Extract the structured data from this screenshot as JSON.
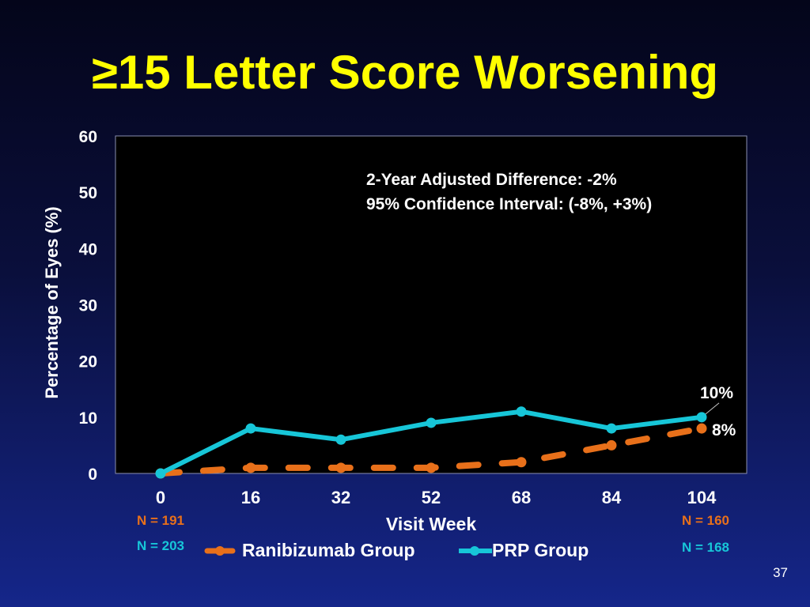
{
  "slide": {
    "title": "≥15 Letter Score Worsening",
    "page_number": "37"
  },
  "n_labels": {
    "ranibizumab_start": "N = 191",
    "prp_start": "N = 203",
    "ranibizumab_end": "N = 160",
    "prp_end": "N = 168"
  },
  "colors": {
    "title": "#ffff00",
    "ranibizumab": "#e8701a",
    "prp": "#17c6d8",
    "plot_background": "#000000",
    "text": "#ffffff"
  },
  "chart_data": {
    "type": "line",
    "title": "",
    "xlabel": "Visit Week",
    "ylabel": "Percentage of Eyes (%)",
    "x": [
      0,
      16,
      32,
      52,
      68,
      84,
      104
    ],
    "x_tick_labels": [
      "0",
      "16",
      "32",
      "52",
      "68",
      "84",
      "104"
    ],
    "ylim": [
      0,
      60
    ],
    "y_ticks": [
      0,
      10,
      20,
      30,
      40,
      50,
      60
    ],
    "grid": false,
    "legend_position": "bottom",
    "series": [
      {
        "name": "Ranibizumab Group",
        "style": "dashed",
        "color": "#e8701a",
        "values": [
          0,
          1,
          1,
          1,
          2,
          5,
          8
        ]
      },
      {
        "name": "PRP Group",
        "style": "solid",
        "color": "#17c6d8",
        "values": [
          0,
          8,
          6,
          9,
          11,
          8,
          10
        ]
      }
    ],
    "annotations": [
      "2-Year Adjusted Difference: -2%",
      "95% Confidence Interval: (-8%, +3%)"
    ],
    "end_labels": {
      "prp": "10%",
      "ranibizumab": "8%"
    }
  }
}
